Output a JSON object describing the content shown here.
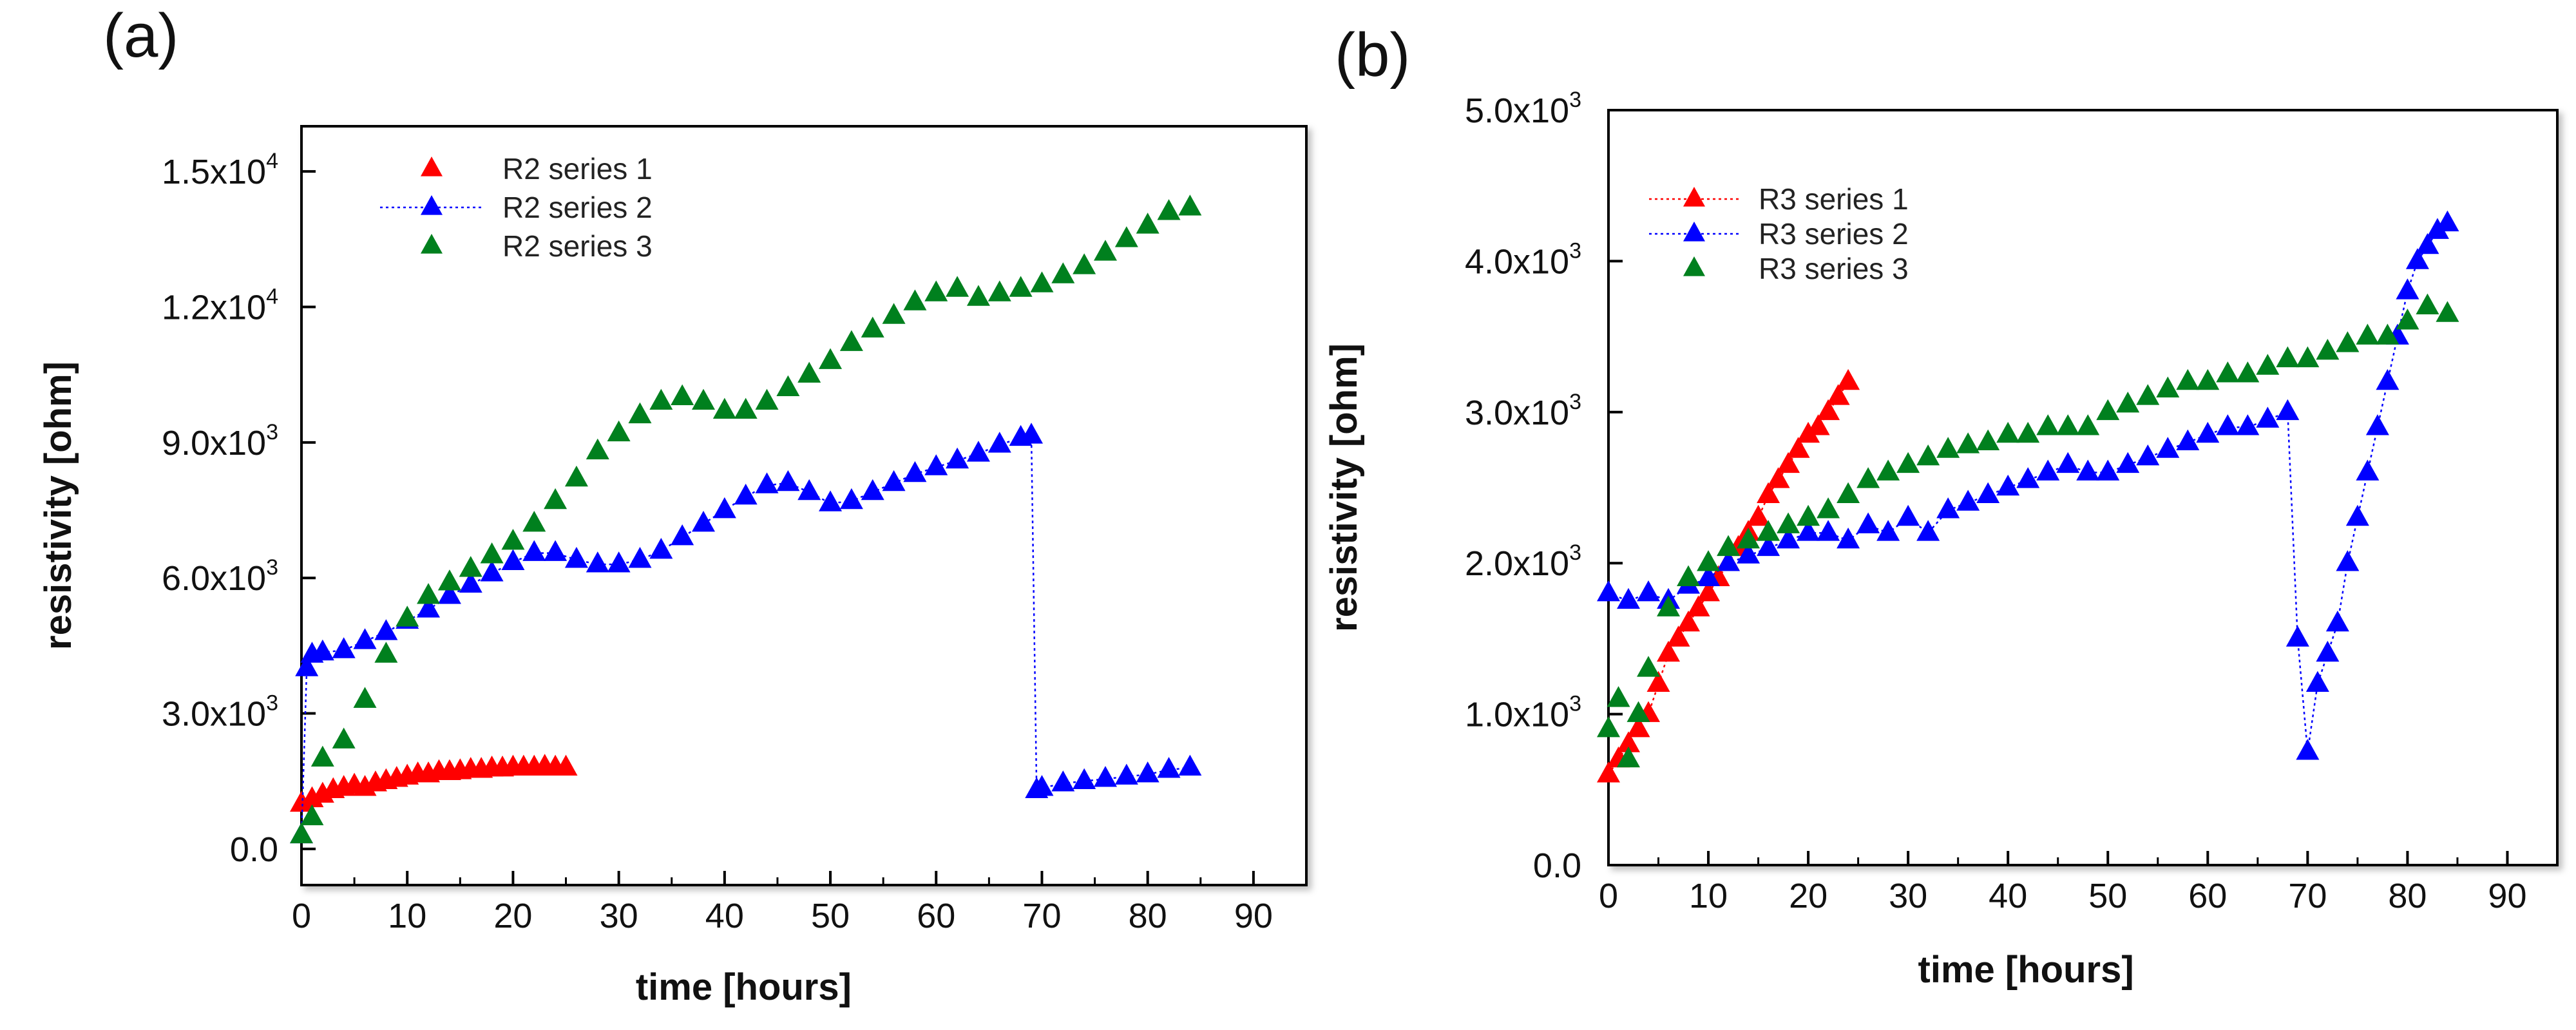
{
  "figure": {
    "panels": [
      "(a)",
      "(b)"
    ]
  },
  "chart_data": [
    {
      "type": "scatter",
      "panel_label": "(a)",
      "xlabel": "time [hours]",
      "ylabel": "resistivity [ohm]",
      "xlim": [
        0,
        95
      ],
      "ylim": [
        -800,
        16000
      ],
      "x_ticks": [
        0,
        10,
        20,
        30,
        40,
        50,
        60,
        70,
        80,
        90
      ],
      "x_tick_labels": [
        "0",
        "10",
        "20",
        "30",
        "40",
        "50",
        "60",
        "70",
        "80",
        "90"
      ],
      "y_ticks": [
        0,
        3000,
        6000,
        9000,
        12000,
        15000
      ],
      "y_tick_labels": [
        {
          "mantissa": "0.0",
          "exp": ""
        },
        {
          "mantissa": "3.0x10",
          "exp": "3"
        },
        {
          "mantissa": "6.0x10",
          "exp": "3"
        },
        {
          "mantissa": "9.0x10",
          "exp": "3"
        },
        {
          "mantissa": "1.2x10",
          "exp": "4"
        },
        {
          "mantissa": "1.5x10",
          "exp": "4"
        }
      ],
      "legend_position": "top-left",
      "series": [
        {
          "name": "R2 series 1",
          "color": "#ff0000",
          "line": false,
          "x": [
            0,
            1,
            2,
            3,
            4,
            5,
            6,
            7,
            8,
            9,
            10,
            11,
            12,
            13,
            14,
            15,
            16,
            17,
            18,
            19,
            20,
            21,
            22,
            23,
            24,
            25
          ],
          "y": [
            1000,
            1100,
            1200,
            1300,
            1350,
            1400,
            1350,
            1450,
            1500,
            1550,
            1600,
            1650,
            1650,
            1700,
            1700,
            1720,
            1750,
            1750,
            1780,
            1780,
            1800,
            1800,
            1800,
            1820,
            1800,
            1800
          ]
        },
        {
          "name": "R2 series 2",
          "color": "#0000ff",
          "line": true,
          "x": [
            0,
            0.5,
            1,
            2,
            4,
            6,
            8,
            10,
            12,
            14,
            16,
            18,
            20,
            22,
            24,
            26,
            28,
            30,
            32,
            34,
            36,
            38,
            40,
            42,
            44,
            46,
            48,
            50,
            52,
            54,
            56,
            58,
            60,
            62,
            64,
            66,
            68,
            69,
            69.5,
            70,
            72,
            74,
            76,
            78,
            80,
            82,
            84
          ],
          "y": [
            300,
            4000,
            4300,
            4350,
            4400,
            4600,
            4800,
            5050,
            5300,
            5600,
            5850,
            6100,
            6350,
            6550,
            6550,
            6400,
            6300,
            6300,
            6400,
            6600,
            6900,
            7200,
            7500,
            7800,
            8050,
            8100,
            7900,
            7650,
            7700,
            7900,
            8100,
            8300,
            8450,
            8600,
            8750,
            8950,
            9100,
            9150,
            1300,
            1350,
            1450,
            1500,
            1550,
            1600,
            1650,
            1750,
            1800
          ]
        },
        {
          "name": "R2 series 3",
          "color": "#00801e",
          "line": false,
          "x": [
            0,
            1,
            2,
            4,
            6,
            8,
            10,
            12,
            14,
            16,
            18,
            20,
            22,
            24,
            26,
            28,
            30,
            32,
            34,
            36,
            38,
            40,
            42,
            44,
            46,
            48,
            50,
            52,
            54,
            56,
            58,
            60,
            62,
            64,
            66,
            68,
            70,
            72,
            74,
            76,
            78,
            80,
            82,
            84
          ],
          "y": [
            300,
            700,
            2000,
            2400,
            3300,
            4300,
            5100,
            5600,
            5900,
            6200,
            6500,
            6800,
            7200,
            7700,
            8200,
            8800,
            9200,
            9600,
            9900,
            10000,
            9900,
            9700,
            9700,
            9900,
            10200,
            10500,
            10800,
            11200,
            11500,
            11800,
            12100,
            12300,
            12400,
            12200,
            12300,
            12400,
            12500,
            12700,
            12900,
            13200,
            13500,
            13800,
            14100,
            14200
          ]
        }
      ]
    },
    {
      "type": "scatter",
      "panel_label": "(b)",
      "xlabel": "time [hours]",
      "ylabel": "resistivity [ohm]",
      "xlim": [
        0,
        95
      ],
      "ylim": [
        0,
        5000
      ],
      "x_ticks": [
        0,
        10,
        20,
        30,
        40,
        50,
        60,
        70,
        80,
        90
      ],
      "x_tick_labels": [
        "0",
        "10",
        "20",
        "30",
        "40",
        "50",
        "60",
        "70",
        "80",
        "90"
      ],
      "y_ticks": [
        0,
        1000,
        2000,
        3000,
        4000,
        5000
      ],
      "y_tick_labels": [
        {
          "mantissa": "0.0",
          "exp": ""
        },
        {
          "mantissa": "1.0x10",
          "exp": "3"
        },
        {
          "mantissa": "2.0x10",
          "exp": "3"
        },
        {
          "mantissa": "3.0x10",
          "exp": "3"
        },
        {
          "mantissa": "4.0x10",
          "exp": "3"
        },
        {
          "mantissa": "5.0x10",
          "exp": "3"
        }
      ],
      "legend_position": "top-left",
      "series": [
        {
          "name": "R3 series 1",
          "color": "#ff0000",
          "line": true,
          "x": [
            0,
            1,
            2,
            3,
            4,
            5,
            6,
            7,
            8,
            9,
            10,
            11,
            12,
            13,
            14,
            15,
            16,
            17,
            18,
            19,
            20,
            21,
            22,
            23,
            24
          ],
          "y": [
            600,
            700,
            800,
            900,
            1000,
            1200,
            1400,
            1500,
            1600,
            1700,
            1800,
            1900,
            2000,
            2100,
            2200,
            2300,
            2450,
            2550,
            2650,
            2750,
            2850,
            2900,
            3000,
            3100,
            3200
          ]
        },
        {
          "name": "R3 series 2",
          "color": "#0000ff",
          "line": true,
          "x": [
            0,
            2,
            4,
            6,
            8,
            10,
            12,
            14,
            16,
            18,
            20,
            22,
            24,
            26,
            28,
            30,
            32,
            34,
            36,
            38,
            40,
            42,
            44,
            46,
            48,
            50,
            52,
            54,
            56,
            58,
            60,
            62,
            64,
            66,
            68,
            69,
            70,
            71,
            72,
            73,
            74,
            75,
            76,
            77,
            78,
            79,
            80,
            81,
            82,
            83,
            84
          ],
          "y": [
            1800,
            1750,
            1800,
            1750,
            1850,
            1900,
            2000,
            2050,
            2100,
            2150,
            2200,
            2200,
            2150,
            2250,
            2200,
            2300,
            2200,
            2350,
            2400,
            2450,
            2500,
            2550,
            2600,
            2650,
            2600,
            2600,
            2650,
            2700,
            2750,
            2800,
            2850,
            2900,
            2900,
            2950,
            3000,
            1500,
            750,
            1200,
            1400,
            1600,
            2000,
            2300,
            2600,
            2900,
            3200,
            3500,
            3800,
            4000,
            4100,
            4200,
            4250
          ]
        },
        {
          "name": "R3 series 3",
          "color": "#00801e",
          "line": false,
          "x": [
            0,
            1,
            2,
            3,
            4,
            6,
            8,
            10,
            12,
            14,
            16,
            18,
            20,
            22,
            24,
            26,
            28,
            30,
            32,
            34,
            36,
            38,
            40,
            42,
            44,
            46,
            48,
            50,
            52,
            54,
            56,
            58,
            60,
            62,
            64,
            66,
            68,
            70,
            72,
            74,
            76,
            78,
            80,
            82,
            84
          ],
          "y": [
            900,
            1100,
            700,
            1000,
            1300,
            1700,
            1900,
            2000,
            2100,
            2150,
            2200,
            2250,
            2300,
            2350,
            2450,
            2550,
            2600,
            2650,
            2700,
            2750,
            2780,
            2800,
            2850,
            2850,
            2900,
            2900,
            2900,
            3000,
            3050,
            3100,
            3150,
            3200,
            3200,
            3250,
            3250,
            3300,
            3350,
            3350,
            3400,
            3450,
            3500,
            3500,
            3600,
            3700,
            3650
          ]
        }
      ]
    }
  ]
}
